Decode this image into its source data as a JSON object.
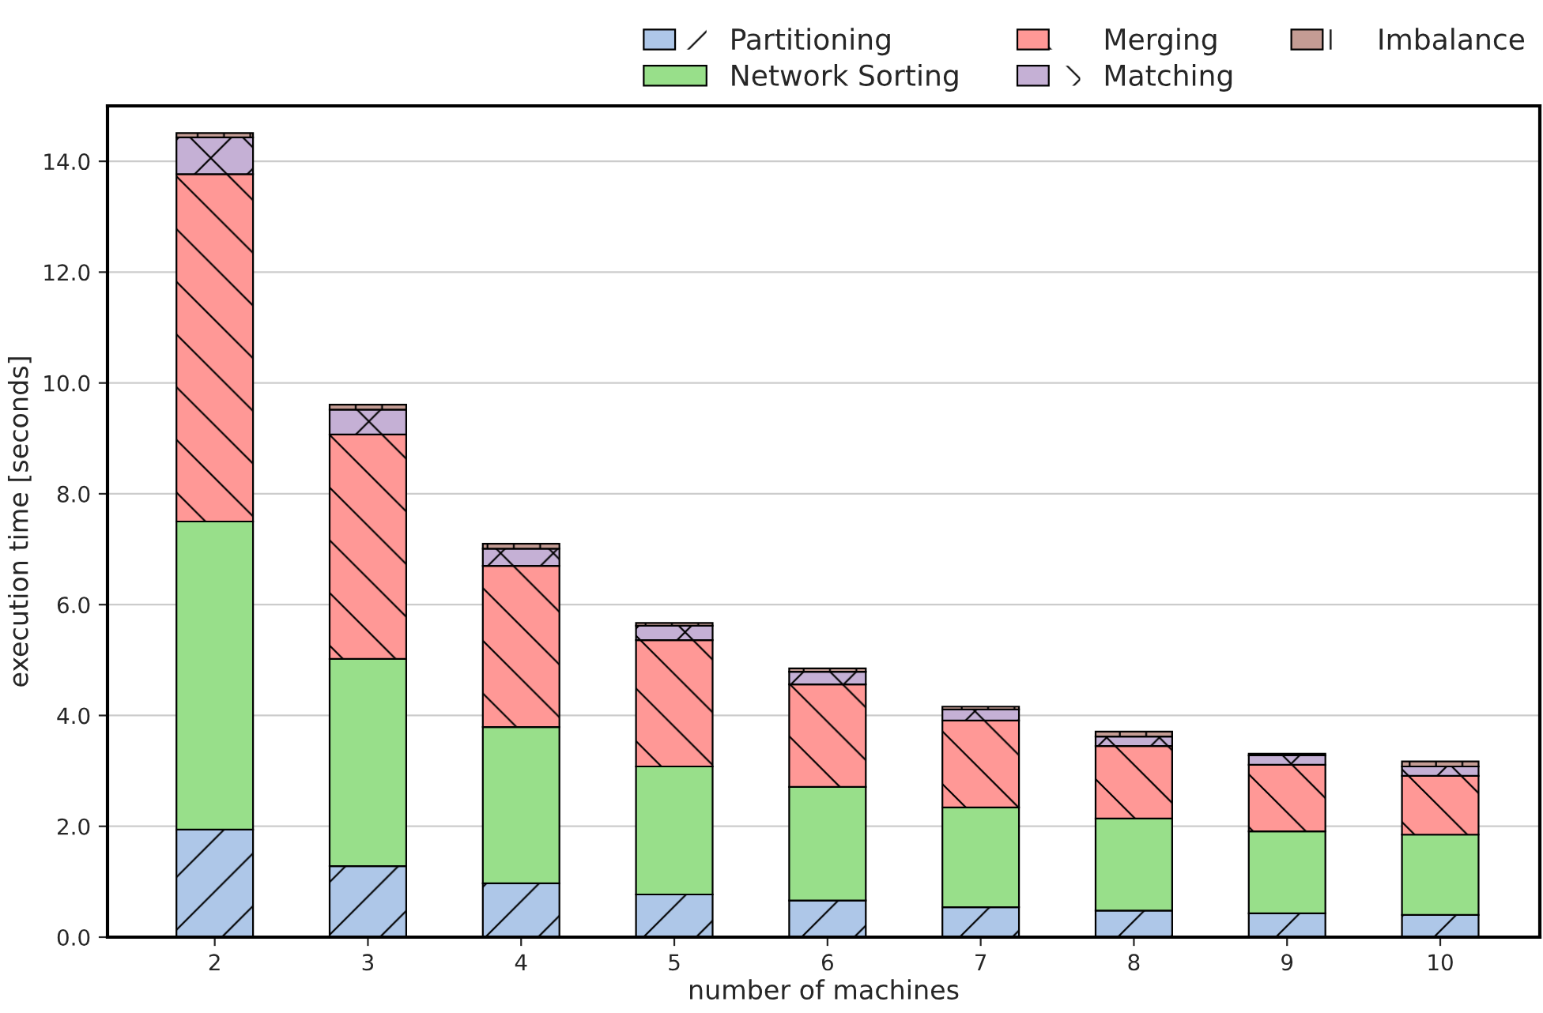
{
  "chart_data": {
    "type": "bar",
    "stacked": true,
    "xlabel": "number of machines",
    "ylabel": "execution time [seconds]",
    "categories": [
      "2",
      "3",
      "4",
      "5",
      "6",
      "7",
      "8",
      "9",
      "10"
    ],
    "series": [
      {
        "name": "Partitioning",
        "color": "#aec7e8",
        "values": [
          1.94,
          1.28,
          0.97,
          0.77,
          0.66,
          0.54,
          0.48,
          0.43,
          0.4
        ]
      },
      {
        "name": "Network Sorting",
        "color": "#98df8a",
        "values": [
          5.56,
          3.74,
          2.82,
          2.31,
          2.05,
          1.8,
          1.66,
          1.48,
          1.45
        ]
      },
      {
        "name": "Merging",
        "color": "#ff9896",
        "values": [
          6.27,
          4.05,
          2.91,
          2.28,
          1.85,
          1.57,
          1.31,
          1.2,
          1.06
        ]
      },
      {
        "name": "Matching",
        "color": "#c5b0d5",
        "values": [
          0.66,
          0.45,
          0.31,
          0.26,
          0.23,
          0.2,
          0.17,
          0.17,
          0.17
        ]
      },
      {
        "name": "Imbalance",
        "color": "#c49c94",
        "values": [
          0.08,
          0.09,
          0.09,
          0.05,
          0.06,
          0.05,
          0.09,
          0.03,
          0.09
        ]
      }
    ],
    "ylim": [
      0,
      15
    ],
    "yticks": [
      {
        "value": 0,
        "label": "0.0"
      },
      {
        "value": 2,
        "label": "2.0"
      },
      {
        "value": 4,
        "label": "4.0"
      },
      {
        "value": 6,
        "label": "6.0"
      },
      {
        "value": 8,
        "label": "8.0"
      },
      {
        "value": 10,
        "label": "10.0"
      },
      {
        "value": 12,
        "label": "12.0"
      },
      {
        "value": 14,
        "label": "14.0"
      }
    ],
    "grid": "y",
    "legend": "top right"
  }
}
